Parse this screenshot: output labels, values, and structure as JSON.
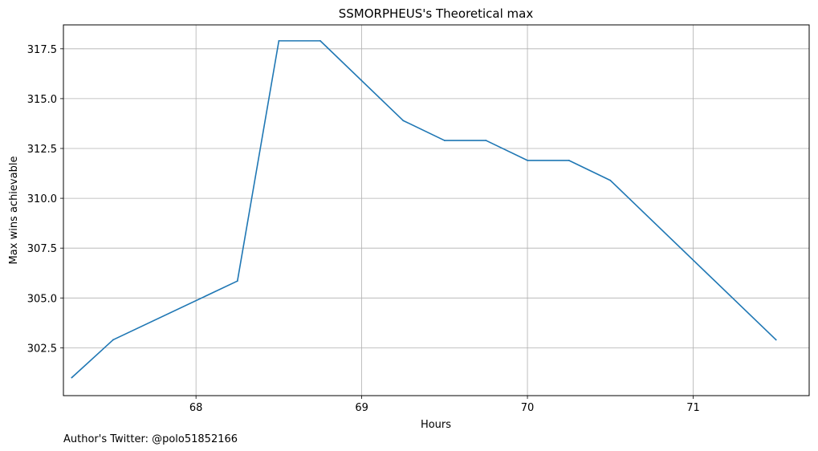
{
  "chart_data": {
    "type": "line",
    "title": "SSMORPHEUS's Theoretical max",
    "xlabel": "Hours",
    "ylabel": "Max wins achievable",
    "footnote": "Author's Twitter: @polo51852166",
    "xlim": [
      67.2,
      71.7
    ],
    "ylim": [
      300.1,
      318.7
    ],
    "x_ticks": [
      68,
      69,
      70,
      71
    ],
    "x_tick_labels": [
      "68",
      "69",
      "70",
      "71"
    ],
    "y_ticks": [
      302.5,
      305.0,
      307.5,
      310.0,
      312.5,
      315.0,
      317.5
    ],
    "y_tick_labels": [
      "302.5",
      "305.0",
      "307.5",
      "310.0",
      "312.5",
      "315.0",
      "317.5"
    ],
    "grid": true,
    "series": [
      {
        "color": "#1f77b4",
        "x": [
          67.25,
          67.5,
          68.25,
          68.5,
          68.75,
          69.25,
          69.5,
          69.75,
          70.0,
          70.25,
          70.5,
          71.5
        ],
        "y": [
          301.0,
          302.9,
          305.85,
          317.9,
          317.9,
          313.9,
          312.9,
          312.9,
          311.9,
          311.9,
          310.9,
          302.9
        ]
      }
    ]
  }
}
